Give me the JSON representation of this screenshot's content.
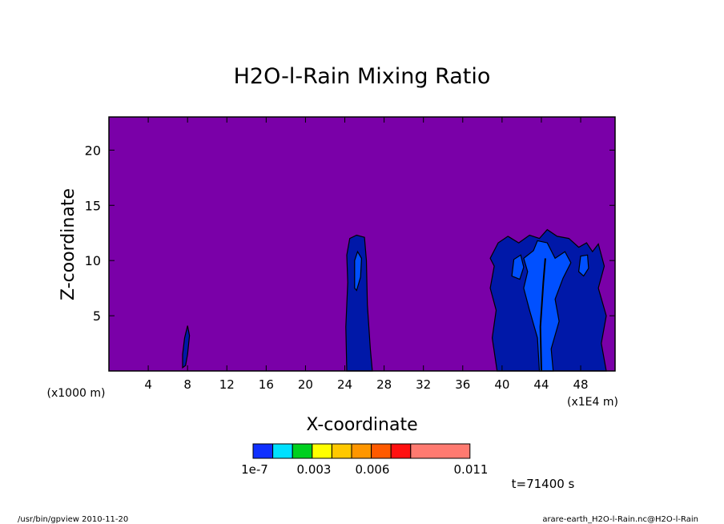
{
  "chart_data": {
    "type": "contour",
    "title": "H2O-l-Rain Mixing Ratio",
    "xlabel": "X-coordinate",
    "ylabel": "Z-coordinate",
    "x_scale_label": "(x1E4 m)",
    "y_scale_label": "(x1000 m)",
    "xlim": [
      0,
      51.5
    ],
    "ylim": [
      0,
      23
    ],
    "x_ticks": [
      4,
      8,
      12,
      16,
      20,
      24,
      28,
      32,
      36,
      40,
      44,
      48
    ],
    "y_ticks": [
      5,
      10,
      15,
      20
    ],
    "background_color": "#7a00a8",
    "levels": {
      "colors": [
        "#1030ff",
        "#00e0ff",
        "#00d020",
        "#ffff00",
        "#ffc800",
        "#ff9600",
        "#ff5a00",
        "#ff1010",
        "#ff7a70"
      ],
      "tick_labels": [
        "1e-7",
        "0.003",
        "0.006",
        "0.011"
      ]
    },
    "regions": [
      {
        "level": 1,
        "color": "#0018a8",
        "points": [
          [
            7.5,
            0.3
          ],
          [
            7.5,
            1.5
          ],
          [
            7.7,
            3
          ],
          [
            8.0,
            4.1
          ],
          [
            8.2,
            3.2
          ],
          [
            8.0,
            1.5
          ],
          [
            7.8,
            0.5
          ]
        ]
      },
      {
        "level": 1,
        "color": "#0018a8",
        "points": [
          [
            24.2,
            0
          ],
          [
            24.1,
            4
          ],
          [
            24.3,
            8
          ],
          [
            24.2,
            10.5
          ],
          [
            24.5,
            12
          ],
          [
            25.2,
            12.3
          ],
          [
            26.0,
            12.1
          ],
          [
            26.2,
            10
          ],
          [
            26.3,
            6
          ],
          [
            26.6,
            2
          ],
          [
            26.8,
            0
          ]
        ]
      },
      {
        "level": 1,
        "color": "#0018a8",
        "points": [
          [
            39.5,
            0
          ],
          [
            39.0,
            3
          ],
          [
            39.4,
            5.5
          ],
          [
            38.8,
            7.5
          ],
          [
            39.2,
            9.5
          ],
          [
            38.8,
            10.2
          ],
          [
            39.6,
            11.6
          ],
          [
            40.6,
            12.2
          ],
          [
            41.7,
            11.6
          ],
          [
            42.8,
            12.3
          ],
          [
            43.8,
            12.0
          ],
          [
            44.6,
            12.8
          ],
          [
            45.6,
            12.2
          ],
          [
            46.8,
            12.0
          ],
          [
            47.8,
            11.2
          ],
          [
            48.6,
            11.6
          ],
          [
            49.2,
            10.8
          ],
          [
            49.8,
            11.5
          ],
          [
            50.4,
            9.5
          ],
          [
            49.8,
            7.5
          ],
          [
            50.6,
            5
          ],
          [
            50.1,
            2.5
          ],
          [
            50.6,
            0
          ]
        ]
      },
      {
        "level": 2,
        "color": "#0050ff",
        "points": [
          [
            25.0,
            7.5
          ],
          [
            25.0,
            10.0
          ],
          [
            25.3,
            10.8
          ],
          [
            25.7,
            10.2
          ],
          [
            25.6,
            8.5
          ],
          [
            25.2,
            7.3
          ]
        ]
      },
      {
        "level": 2,
        "color": "#0050ff",
        "points": [
          [
            43.8,
            0
          ],
          [
            43.6,
            3.0
          ],
          [
            42.8,
            5.5
          ],
          [
            42.2,
            7.5
          ],
          [
            42.6,
            9.0
          ],
          [
            42.2,
            10.2
          ],
          [
            43.2,
            10.9
          ],
          [
            43.6,
            11.8
          ],
          [
            44.6,
            11.6
          ],
          [
            45.4,
            10.2
          ],
          [
            46.4,
            10.8
          ],
          [
            47.0,
            9.8
          ],
          [
            46.2,
            8.4
          ],
          [
            45.4,
            6.5
          ],
          [
            45.8,
            4.5
          ],
          [
            45.0,
            2.0
          ],
          [
            45.2,
            0
          ]
        ]
      },
      {
        "level": 2,
        "color": "#0050ff",
        "points": [
          [
            41.0,
            8.6
          ],
          [
            41.2,
            10.1
          ],
          [
            41.9,
            10.5
          ],
          [
            42.2,
            9.4
          ],
          [
            41.8,
            8.3
          ]
        ]
      },
      {
        "level": 2,
        "color": "#0050ff",
        "points": [
          [
            47.8,
            9.0
          ],
          [
            48.0,
            10.4
          ],
          [
            48.7,
            10.5
          ],
          [
            48.8,
            9.3
          ],
          [
            48.3,
            8.6
          ]
        ]
      }
    ],
    "core_line": {
      "points": [
        [
          44.0,
          0
        ],
        [
          43.9,
          4
        ],
        [
          44.2,
          8
        ],
        [
          44.4,
          10.2
        ]
      ]
    },
    "annotation": "t=71400 s"
  },
  "footer": {
    "left": "/usr/bin/gpview  2010-11-20",
    "right": "arare-earth_H2O-l-Rain.nc@H2O-l-Rain"
  }
}
